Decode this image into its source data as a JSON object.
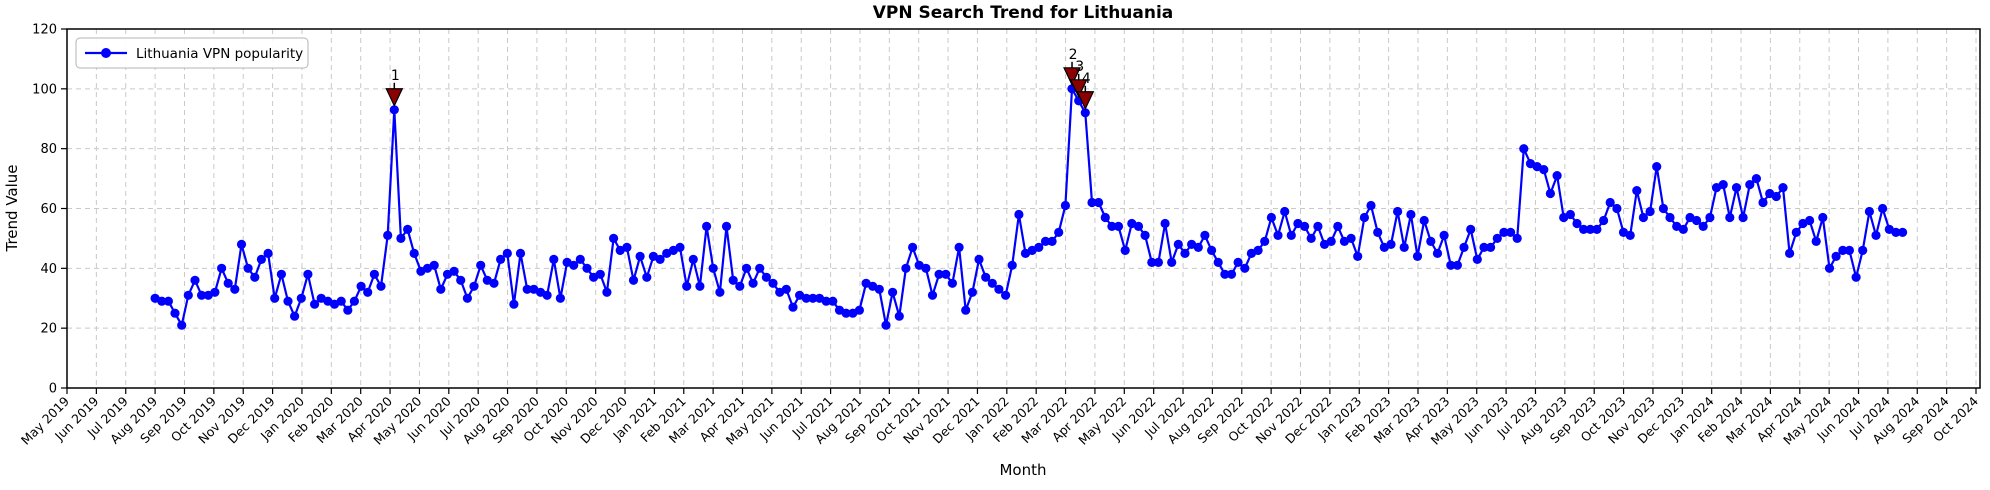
{
  "chart_data": {
    "type": "line",
    "title": "VPN Search Trend for Lithuania",
    "xlabel": "Month",
    "ylabel": "Trend Value",
    "legend": [
      "Lithuania VPN popularity"
    ],
    "legend_position": "upper left",
    "grid": true,
    "ylim": [
      0,
      120
    ],
    "yticks": [
      0,
      20,
      40,
      60,
      80,
      100,
      120
    ],
    "x_tick_labels": [
      "May 2019",
      "Jun 2019",
      "Jul 2019",
      "Aug 2019",
      "Sep 2019",
      "Oct 2019",
      "Nov 2019",
      "Dec 2019",
      "Jan 2020",
      "Feb 2020",
      "Mar 2020",
      "Apr 2020",
      "May 2020",
      "Jun 2020",
      "Jul 2020",
      "Aug 2020",
      "Sep 2020",
      "Oct 2020",
      "Nov 2020",
      "Dec 2020",
      "Jan 2021",
      "Feb 2021",
      "Mar 2021",
      "Apr 2021",
      "May 2021",
      "Jun 2021",
      "Jul 2021",
      "Aug 2021",
      "Sep 2021",
      "Oct 2021",
      "Nov 2021",
      "Dec 2021",
      "Jan 2022",
      "Feb 2022",
      "Mar 2022",
      "Apr 2022",
      "May 2022",
      "Jun 2022",
      "Jul 2022",
      "Aug 2022",
      "Sep 2022",
      "Oct 2022",
      "Nov 2022",
      "Dec 2022",
      "Jan 2023",
      "Feb 2023",
      "Mar 2023",
      "Apr 2023",
      "May 2023",
      "Jun 2023",
      "Jul 2023",
      "Aug 2023",
      "Sep 2023",
      "Oct 2023",
      "Nov 2023",
      "Dec 2023",
      "Jan 2024",
      "Feb 2024",
      "Mar 2024",
      "Apr 2024",
      "May 2024",
      "Jun 2024",
      "Jul 2024",
      "Aug 2024",
      "Sep 2024",
      "Oct 2024"
    ],
    "series": [
      {
        "name": "Lithuania VPN popularity",
        "frequency": "weekly",
        "first_point": "Aug 2019",
        "last_point": "Jul 2024",
        "color": "#0000ff",
        "values": [
          30,
          29,
          29,
          25,
          21,
          31,
          36,
          31,
          31,
          32,
          40,
          35,
          33,
          48,
          40,
          37,
          43,
          45,
          30,
          38,
          29,
          24,
          30,
          38,
          28,
          30,
          29,
          28,
          29,
          26,
          29,
          34,
          32,
          38,
          34,
          51,
          93,
          50,
          53,
          45,
          39,
          40,
          41,
          33,
          38,
          39,
          36,
          30,
          34,
          41,
          36,
          35,
          43,
          45,
          28,
          45,
          33,
          33,
          32,
          31,
          43,
          30,
          42,
          41,
          43,
          40,
          37,
          38,
          32,
          50,
          46,
          47,
          36,
          44,
          37,
          44,
          43,
          45,
          46,
          47,
          34,
          43,
          34,
          54,
          40,
          32,
          54,
          36,
          34,
          40,
          35,
          40,
          37,
          35,
          32,
          33,
          27,
          31,
          30,
          30,
          30,
          29,
          29,
          26,
          25,
          25,
          26,
          35,
          34,
          33,
          21,
          32,
          24,
          40,
          47,
          41,
          40,
          31,
          38,
          38,
          35,
          47,
          26,
          32,
          43,
          37,
          35,
          33,
          31,
          41,
          58,
          45,
          46,
          47,
          49,
          49,
          52,
          61,
          100,
          96,
          92,
          62,
          62,
          57,
          54,
          54,
          46,
          55,
          54,
          51,
          42,
          42,
          55,
          42,
          48,
          45,
          48,
          47,
          51,
          46,
          42,
          38,
          38,
          42,
          40,
          45,
          46,
          49,
          57,
          51,
          59,
          51,
          55,
          54,
          50,
          54,
          48,
          49,
          54,
          49,
          50,
          44,
          57,
          61,
          52,
          47,
          48,
          59,
          47,
          58,
          44,
          56,
          49,
          45,
          51,
          41,
          41,
          47,
          53,
          43,
          47,
          47,
          50,
          52,
          52,
          50,
          80,
          75,
          74,
          73,
          65,
          71,
          57,
          58,
          55,
          53,
          53,
          53,
          56,
          62,
          60,
          52,
          51,
          66,
          57,
          59,
          74,
          60,
          57,
          54,
          53,
          57,
          56,
          54,
          57,
          67,
          68,
          57,
          67,
          57,
          68,
          70,
          62,
          65,
          64,
          67,
          45,
          52,
          55,
          56,
          49,
          57,
          40,
          44,
          46,
          46,
          37,
          46,
          59,
          51,
          60,
          53,
          52,
          52
        ]
      }
    ],
    "annotations": [
      {
        "label": "1",
        "point_index": 36,
        "value": 93
      },
      {
        "label": "2",
        "point_index": 138,
        "value": 100
      },
      {
        "label": "3",
        "point_index": 139,
        "value": 96
      },
      {
        "label": "4",
        "point_index": 140,
        "value": 92
      }
    ],
    "colors": {
      "line": "#0000ff",
      "marker": "#0000ff",
      "annotation": "#8b0000",
      "annotation_edge": "#000000",
      "grid": "#c9c9c9",
      "axes": "#000000",
      "background": "#ffffff"
    }
  }
}
